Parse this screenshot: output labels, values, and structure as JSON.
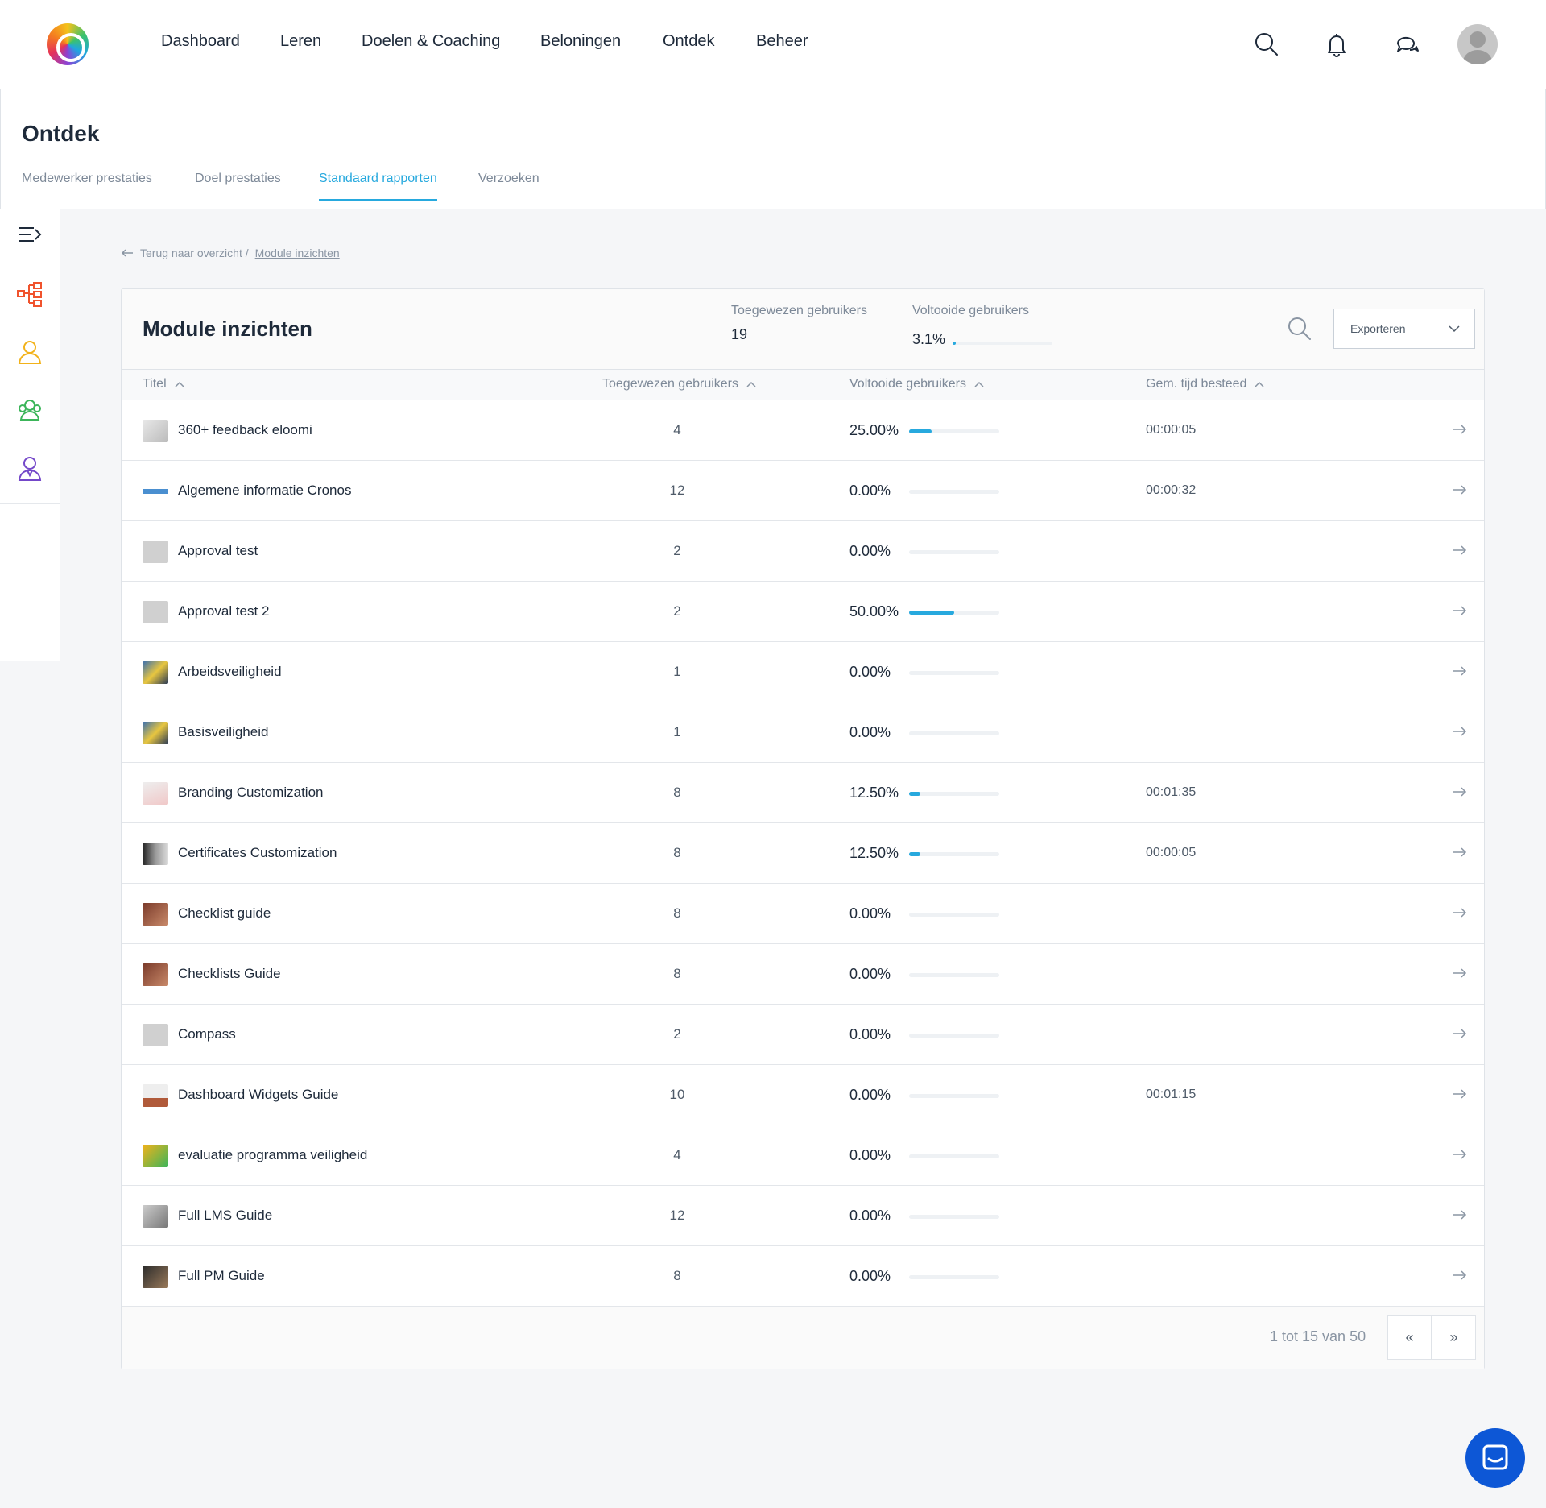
{
  "nav": {
    "items": [
      "Dashboard",
      "Leren",
      "Doelen & Coaching",
      "Beloningen",
      "Ontdek",
      "Beheer"
    ]
  },
  "page": {
    "title": "Ontdek",
    "tabs": [
      "Medewerker prestaties",
      "Doel prestaties",
      "Standaard rapporten",
      "Verzoeken"
    ],
    "active_tab": "Standaard rapporten"
  },
  "breadcrumb": {
    "back": "Terug naar overzicht /",
    "current": "Module inzichten"
  },
  "card": {
    "title": "Module inzichten",
    "stats": {
      "assigned_label": "Toegewezen gebruikers",
      "assigned_value": "19",
      "completed_label": "Voltooide gebruikers",
      "completed_value": "3.1%",
      "completed_fraction": 0.031
    },
    "export_label": "Exporteren",
    "columns": [
      "Titel",
      "Toegewezen gebruikers",
      "Voltooide gebruikers",
      "Gem. tijd besteed"
    ],
    "rows": [
      {
        "title": "360+ feedback eloomi",
        "assigned": "4",
        "completed": "25.00%",
        "fraction": 0.25,
        "time": "00:00:05"
      },
      {
        "title": "Algemene informatie Cronos",
        "assigned": "12",
        "completed": "0.00%",
        "fraction": 0,
        "time": "00:00:32"
      },
      {
        "title": "Approval test",
        "assigned": "2",
        "completed": "0.00%",
        "fraction": 0,
        "time": ""
      },
      {
        "title": "Approval test 2",
        "assigned": "2",
        "completed": "50.00%",
        "fraction": 0.5,
        "time": ""
      },
      {
        "title": "Arbeidsveiligheid",
        "assigned": "1",
        "completed": "0.00%",
        "fraction": 0,
        "time": ""
      },
      {
        "title": "Basisveiligheid",
        "assigned": "1",
        "completed": "0.00%",
        "fraction": 0,
        "time": ""
      },
      {
        "title": "Branding Customization",
        "assigned": "8",
        "completed": "12.50%",
        "fraction": 0.125,
        "time": "00:01:35"
      },
      {
        "title": "Certificates Customization",
        "assigned": "8",
        "completed": "12.50%",
        "fraction": 0.125,
        "time": "00:00:05"
      },
      {
        "title": "Checklist guide",
        "assigned": "8",
        "completed": "0.00%",
        "fraction": 0,
        "time": ""
      },
      {
        "title": "Checklists Guide",
        "assigned": "8",
        "completed": "0.00%",
        "fraction": 0,
        "time": ""
      },
      {
        "title": "Compass",
        "assigned": "2",
        "completed": "0.00%",
        "fraction": 0,
        "time": ""
      },
      {
        "title": "Dashboard Widgets Guide",
        "assigned": "10",
        "completed": "0.00%",
        "fraction": 0,
        "time": "00:01:15"
      },
      {
        "title": "evaluatie programma veiligheid",
        "assigned": "4",
        "completed": "0.00%",
        "fraction": 0,
        "time": ""
      },
      {
        "title": "Full LMS Guide",
        "assigned": "12",
        "completed": "0.00%",
        "fraction": 0,
        "time": ""
      },
      {
        "title": "Full PM Guide",
        "assigned": "8",
        "completed": "0.00%",
        "fraction": 0,
        "time": ""
      }
    ],
    "pagination": {
      "info": "1 tot 15 van 50",
      "prev": "«",
      "next": "»"
    }
  },
  "colors": {
    "accent": "#27a9de",
    "chat": "#0d57d6"
  }
}
